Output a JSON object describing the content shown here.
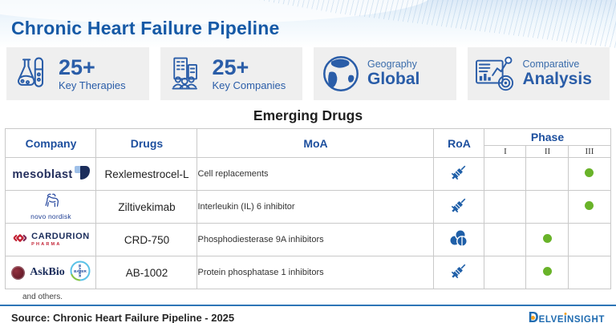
{
  "title": "Chronic Heart Failure Pipeline",
  "stats": [
    {
      "icon": "lab-flasks-icon",
      "value": "25+",
      "label": "Key Therapies"
    },
    {
      "icon": "companies-icon",
      "value": "25+",
      "label": "Key Companies"
    },
    {
      "icon": "globe-icon",
      "label": "Geography",
      "value": "Global"
    },
    {
      "icon": "analytics-icon",
      "label": "Comparative",
      "value": "Analysis"
    }
  ],
  "section_title": "Emerging Drugs",
  "table": {
    "headers": {
      "company": "Company",
      "drugs": "Drugs",
      "moa": "MoA",
      "roa": "RoA",
      "phase": "Phase",
      "phase_I": "I",
      "phase_II": "II",
      "phase_III": "III"
    },
    "rows": [
      {
        "company": "mesoblast",
        "drug": "Rexlemestrocel-L",
        "moa": "Cell replacements",
        "roa_icon": "syringe-icon",
        "phase": "III"
      },
      {
        "company": "novo nordisk",
        "drug": "Ziltivekimab",
        "moa": "Interleukin (IL) 6 inhibitor",
        "roa_icon": "syringe-icon",
        "phase": "III"
      },
      {
        "company": "Cardurion Pharma",
        "drug": "CRD-750",
        "moa": "Phosphodiesterase 9A inhibitors",
        "roa_icon": "pills-icon",
        "phase": "II"
      },
      {
        "company": "AskBio / Bayer",
        "drug": "AB-1002",
        "moa": "Protein phosphatase 1 inhibitors",
        "roa_icon": "syringe-icon",
        "phase": "II"
      }
    ],
    "footnote": "and others."
  },
  "logos": {
    "mesoblast": "mesoblast",
    "novo_nordisk": "novo nordisk",
    "cardurion": "CARDURION",
    "cardurion_sub": "PHARMA",
    "askbio": "AskBio",
    "bayer": "BAYER"
  },
  "footer": {
    "source": "Source: Chronic Heart Failure Pipeline - 2025",
    "brand_d": "D",
    "brand_mid": "ELVE",
    "brand_i": "I",
    "brand_rest": "NSIGHT"
  },
  "colors": {
    "accent_blue": "#1f5fa8",
    "title_blue": "#1559a6",
    "header_blue": "#1d4f9e",
    "thick_border_blue": "#2f6c8f",
    "phase_dot_green": "#69b329",
    "footer_line_blue": "#2e75b6",
    "stat_box_bg": "#efefef"
  }
}
